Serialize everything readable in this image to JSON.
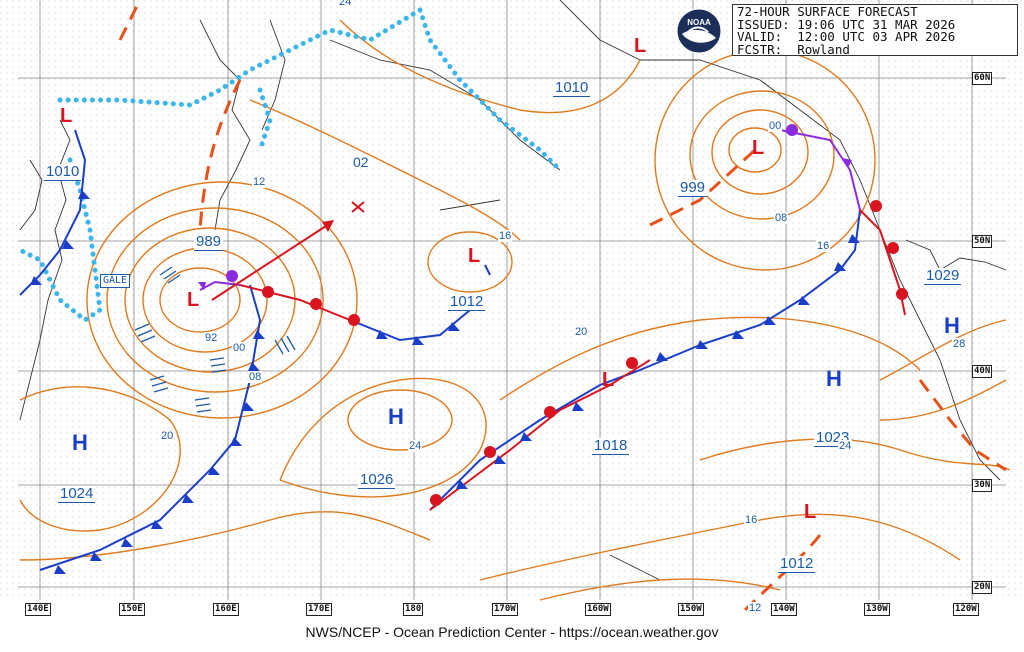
{
  "header": {
    "title": "72-HOUR SURFACE FORECAST",
    "issued": "ISSUED: 19:06 UTC 31 MAR 2026",
    "valid": "VALID:  12:00 UTC 03 APR 2026",
    "forecaster": "FCSTR:  Rowland"
  },
  "logo": {
    "text": "NOAA"
  },
  "footer": {
    "credit": "NWS/NCEP - Ocean Prediction Center - https://ocean.weather.gov"
  },
  "latitudes": [
    "60N",
    "50N",
    "40N",
    "30N",
    "20N"
  ],
  "longitudes": [
    "140E",
    "150E",
    "160E",
    "170E",
    "180",
    "170W",
    "160W",
    "150W",
    "140W",
    "130W",
    "120W"
  ],
  "pressure_centers": {
    "p1010_w": "1010",
    "p989": "989",
    "p1024": "1024",
    "p1026": "1026",
    "p1012_c": "1012",
    "p1010_n": "1010",
    "p999": "999",
    "p1018": "1018",
    "p1023": "1023",
    "p1029": "1029",
    "p1012_s": "1012"
  },
  "isobar_labels": {
    "i24_top": "24",
    "i02": "02",
    "i12_w": "12",
    "i92": "92",
    "i00_w": "00",
    "i08_w": "08",
    "i20_w": "20",
    "i24_c": "24",
    "i16_c": "16",
    "i20_c": "20",
    "i00_e": "00",
    "i08_e": "08",
    "i16_e": "16",
    "i24_e": "24",
    "i28_e": "28",
    "i16_s": "16",
    "i12_s": "12"
  },
  "symbols": {
    "high": "H",
    "low": "L"
  },
  "gale_label": "GALE",
  "colors": {
    "isobar": "#e07a1e",
    "cold_front": "#1a3ec8",
    "warm_front": "#d8141e",
    "occluded_front": "#8a2be2",
    "ice_edge": "#3cb6ea",
    "trough": "#e8501a",
    "pressure_label": "#1a5aa8",
    "grid": "#9a9a9a"
  }
}
